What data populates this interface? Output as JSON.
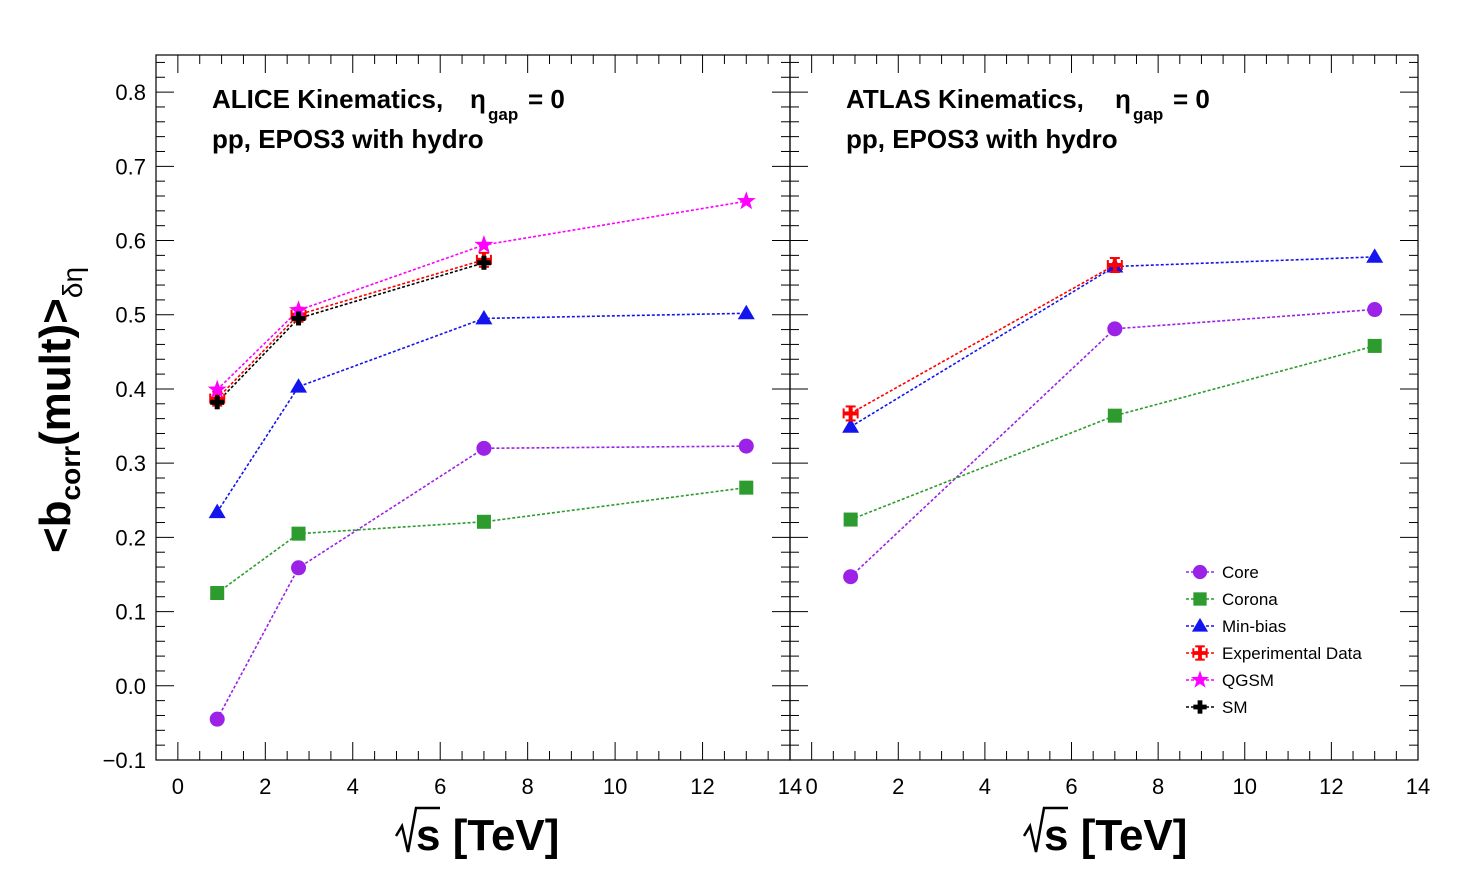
{
  "chart_data": [
    {
      "type": "line",
      "panel": "left",
      "title_line1": "ALICE Kinematics,",
      "title_line2": "pp, EPOS3 with hydro",
      "eta_symbol": "η",
      "eta_sub": "gap",
      "eta_rest": "= 0",
      "xlabel": "s [TeV]",
      "ylabel_main": "<b",
      "ylabel_sub1": "corr",
      "ylabel_mid": "(mult)>",
      "ylabel_sub2": "δη",
      "xlim": [
        -0.5,
        14.0
      ],
      "ylim": [
        -0.1,
        0.85
      ],
      "xticks": [
        "0",
        "2",
        "4",
        "6",
        "8",
        "10",
        "12",
        "14"
      ],
      "yticks": [
        "−0.1",
        "0.0",
        "0.1",
        "0.2",
        "0.3",
        "0.4",
        "0.5",
        "0.6",
        "0.7",
        "0.8"
      ],
      "series": [
        {
          "name": "Core",
          "color": "#9b22e6",
          "marker": "circle",
          "x": [
            0.9,
            2.76,
            7,
            13
          ],
          "y": [
            -0.045,
            0.159,
            0.32,
            0.323
          ]
        },
        {
          "name": "Corona",
          "color": "#2d9b2d",
          "marker": "square",
          "x": [
            0.9,
            2.76,
            7,
            13
          ],
          "y": [
            0.125,
            0.205,
            0.221,
            0.267
          ]
        },
        {
          "name": "Min-bias",
          "color": "#1414ee",
          "marker": "triangle",
          "x": [
            0.9,
            2.76,
            7,
            13
          ],
          "y": [
            0.234,
            0.403,
            0.495,
            0.502
          ]
        },
        {
          "name": "Experimental Data",
          "color": "#ff0000",
          "marker": "cross",
          "x": [
            0.9,
            2.76,
            7
          ],
          "y": [
            0.387,
            0.5,
            0.574
          ]
        },
        {
          "name": "QGSM",
          "color": "#ff00ff",
          "marker": "star",
          "x": [
            0.9,
            2.76,
            7,
            13
          ],
          "y": [
            0.399,
            0.506,
            0.594,
            0.653
          ]
        },
        {
          "name": "SM",
          "color": "#000000",
          "marker": "plus",
          "x": [
            0.9,
            2.76,
            7
          ],
          "y": [
            0.382,
            0.495,
            0.57
          ]
        }
      ]
    },
    {
      "type": "line",
      "panel": "right",
      "title_line1": "ATLAS Kinematics,",
      "title_line2": "pp, EPOS3 with hydro",
      "eta_symbol": "η",
      "eta_sub": "gap",
      "eta_rest": "= 0",
      "xlabel": "s [TeV]",
      "xlim": [
        -0.5,
        14.0
      ],
      "ylim": [
        -0.1,
        0.85
      ],
      "xticks": [
        "0",
        "2",
        "4",
        "6",
        "8",
        "10",
        "12",
        "14"
      ],
      "series": [
        {
          "name": "Core",
          "color": "#9b22e6",
          "marker": "circle",
          "x": [
            0.9,
            7,
            13
          ],
          "y": [
            0.147,
            0.481,
            0.507
          ]
        },
        {
          "name": "Corona",
          "color": "#2d9b2d",
          "marker": "square",
          "x": [
            0.9,
            7,
            13
          ],
          "y": [
            0.224,
            0.364,
            0.458
          ]
        },
        {
          "name": "Min-bias",
          "color": "#1414ee",
          "marker": "triangle",
          "x": [
            0.9,
            7,
            13
          ],
          "y": [
            0.349,
            0.565,
            0.578
          ]
        },
        {
          "name": "Experimental Data",
          "color": "#ff0000",
          "marker": "cross",
          "x": [
            0.9,
            7
          ],
          "y": [
            0.367,
            0.567
          ]
        }
      ],
      "legend": {
        "placement": "bottom-right",
        "entries": [
          {
            "label": "Core",
            "color": "#9b22e6",
            "marker": "circle"
          },
          {
            "label": "Corona",
            "color": "#2d9b2d",
            "marker": "square"
          },
          {
            "label": "Min-bias",
            "color": "#1414ee",
            "marker": "triangle"
          },
          {
            "label": "Experimental Data",
            "color": "#ff0000",
            "marker": "cross"
          },
          {
            "label": "QGSM",
            "color": "#ff00ff",
            "marker": "star"
          },
          {
            "label": "SM",
            "color": "#000000",
            "marker": "plus"
          }
        ]
      }
    }
  ]
}
